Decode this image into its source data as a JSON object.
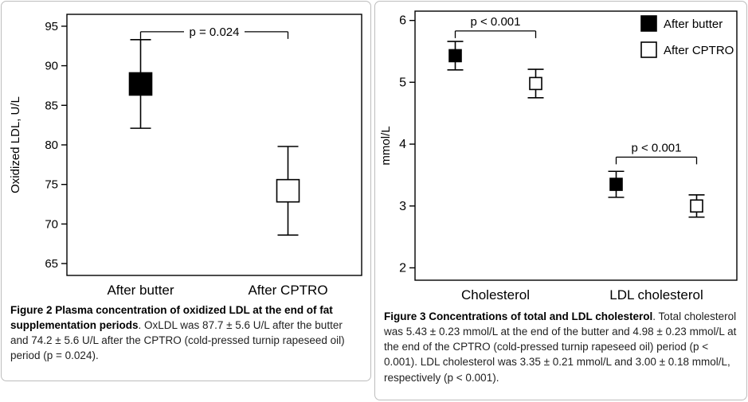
{
  "style": {
    "ink": "#000000",
    "marker_open_fill": "#ffffff",
    "panel_border": "#bdbdbd",
    "caption_color": "#1f1f1f"
  },
  "figures": [
    {
      "caption": {
        "bold": "Figure 2 Plasma concentration of oxidized LDL at the end of fat supplementation periods",
        "text": ". OxLDL was 87.7 ± 5.6 U/L after the butter and 74.2 ± 5.6 U/L after the CPTRO (cold-pressed turnip rapeseed oil) period (p = 0.024)."
      }
    },
    {
      "caption": {
        "bold": "Figure 3 Concentrations of total and LDL cholesterol",
        "text": ". Total cholesterol was 5.43 ± 0.23 mmol/L at the end of the butter and 4.98 ± 0.23 mmol/L at the end of the CPTRO (cold-pressed turnip rapeseed oil) period (p < 0.001). LDL cholesterol was 3.35 ± 0.21 mmol/L and 3.00 ± 0.18 mmol/L, respectively (p < 0.001)."
      }
    }
  ],
  "chart_data": [
    {
      "type": "scatter",
      "title": "",
      "xlabel": "",
      "ylabel": "Oxidized LDL, U/L",
      "ylim": [
        63.5,
        96.5
      ],
      "yticks": [
        65,
        70,
        75,
        80,
        85,
        90,
        95
      ],
      "grid": false,
      "legend": null,
      "categories": [
        "After butter",
        "After CPTRO"
      ],
      "series": [
        {
          "name": "After butter",
          "marker": "filled",
          "color": "#000000",
          "values": [
            87.7,
            null
          ],
          "errors": [
            5.6,
            null
          ]
        },
        {
          "name": "After CPTRO",
          "marker": "open",
          "color": "#000000",
          "values": [
            null,
            74.2
          ],
          "errors": [
            null,
            5.6
          ]
        }
      ],
      "annotations": [
        {
          "label": "p = 0.024",
          "from": {
            "series": 0,
            "category": 0
          },
          "to": {
            "series": 1,
            "category": 1
          },
          "y": 94.3,
          "label_position": "on-line"
        }
      ]
    },
    {
      "type": "scatter",
      "title": "",
      "xlabel": "",
      "ylabel": "mmol/L",
      "ylim": [
        1.8,
        6.15
      ],
      "yticks": [
        2,
        3,
        4,
        5,
        6
      ],
      "grid": false,
      "legend": {
        "position": "top-right",
        "entries": [
          "After butter",
          "After CPTRO"
        ]
      },
      "categories": [
        "Cholesterol",
        "LDL cholesterol"
      ],
      "series": [
        {
          "name": "After butter",
          "marker": "filled",
          "color": "#000000",
          "values": [
            5.43,
            3.35
          ],
          "errors": [
            0.23,
            0.21
          ]
        },
        {
          "name": "After CPTRO",
          "marker": "open",
          "color": "#000000",
          "values": [
            4.98,
            3.0
          ],
          "errors": [
            0.23,
            0.18
          ]
        }
      ],
      "annotations": [
        {
          "label": "p < 0.001",
          "from": {
            "series": 0,
            "category": 0
          },
          "to": {
            "series": 1,
            "category": 0
          },
          "y": 5.83,
          "label_position": "above-line"
        },
        {
          "label": "p < 0.001",
          "from": {
            "series": 0,
            "category": 1
          },
          "to": {
            "series": 1,
            "category": 1
          },
          "y": 3.79,
          "label_position": "above-line"
        }
      ]
    }
  ]
}
